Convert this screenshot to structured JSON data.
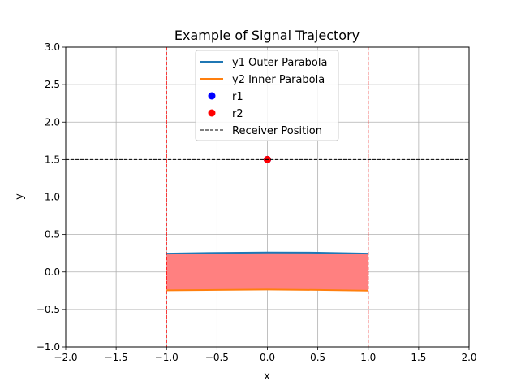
{
  "chart_data": {
    "type": "line",
    "title": "Example of Signal Trajectory",
    "xlabel": "x",
    "ylabel": "y",
    "xlim": [
      -2.0,
      2.0
    ],
    "ylim": [
      -1.0,
      3.0
    ],
    "xticks": [
      "−2.0",
      "−1.5",
      "−1.0",
      "−0.5",
      "0.0",
      "0.5",
      "1.0",
      "1.5",
      "2.0"
    ],
    "yticks": [
      "−1.0",
      "−0.5",
      "0.0",
      "0.5",
      "1.0",
      "1.5",
      "2.0",
      "2.5",
      "3.0"
    ],
    "grid": true,
    "legend_position": "top-center",
    "series": [
      {
        "name": "y1 Outer Parabola",
        "color": "#1f77b4",
        "x": [
          -1.0,
          -0.5,
          0.0,
          0.5,
          1.0
        ],
        "y": [
          0.245,
          0.255,
          0.26,
          0.258,
          0.245
        ]
      },
      {
        "name": "y2 Inner Parabola",
        "color": "#ff7f0e",
        "x": [
          -1.0,
          -0.5,
          0.0,
          0.5,
          1.0
        ],
        "y": [
          -0.245,
          -0.24,
          -0.235,
          -0.24,
          -0.25
        ]
      },
      {
        "name": "r1",
        "color": "#0000ff",
        "type": "scatter",
        "x": [
          0.0
        ],
        "y": [
          1.5
        ]
      },
      {
        "name": "r2",
        "color": "#ff0000",
        "type": "scatter",
        "x": [
          0.0
        ],
        "y": [
          1.5
        ]
      },
      {
        "name": "Receiver Position",
        "color": "#000000",
        "type": "hline",
        "y": 1.5
      }
    ],
    "fill_between": {
      "series": [
        "y1 Outer Parabola",
        "y2 Inner Parabola"
      ],
      "color": "#ff8080"
    },
    "vlines": [
      {
        "x": -1.0,
        "color": "#ff0000"
      },
      {
        "x": 1.0,
        "color": "#ff0000"
      }
    ]
  }
}
